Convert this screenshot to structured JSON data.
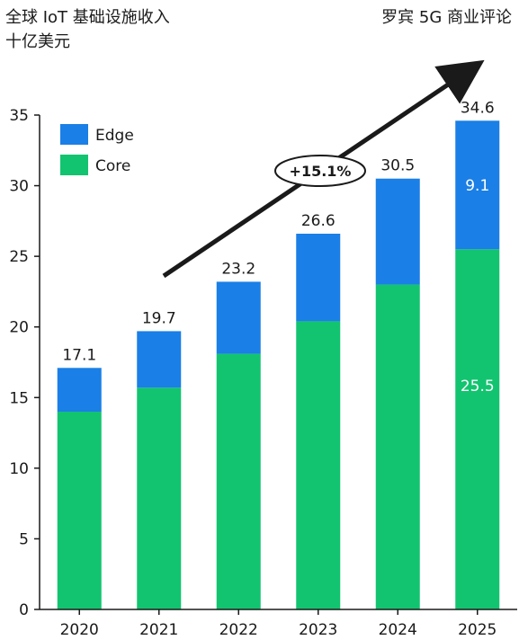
{
  "header": {
    "title_line1": "全球 IoT 基础设施收入",
    "title_line2": "十亿美元",
    "source": "罗宾 5G 商业评论"
  },
  "colors": {
    "edge": "#1a7fe6",
    "core": "#12c46f",
    "text": "#1a1a1a",
    "axis": "#1a1a1a"
  },
  "chart_data": {
    "type": "bar",
    "stacked": true,
    "categories": [
      "2020",
      "2021",
      "2022",
      "2023",
      "2024",
      "2025"
    ],
    "series": [
      {
        "name": "Core",
        "values": [
          14.0,
          15.7,
          18.1,
          20.4,
          23.0,
          25.5
        ]
      },
      {
        "name": "Edge",
        "values": [
          3.1,
          4.0,
          5.1,
          6.2,
          7.5,
          9.1
        ]
      }
    ],
    "totals": [
      "17.1",
      "19.7",
      "23.2",
      "26.6",
      "30.5",
      "34.6"
    ],
    "inner_labels": {
      "edge": "9.1",
      "core": "25.5"
    },
    "ylim": [
      0,
      35
    ],
    "yticks": [
      "0",
      "5",
      "10",
      "15",
      "20",
      "25",
      "30",
      "35"
    ],
    "legend": {
      "placement": "top-left",
      "entries": [
        "Edge",
        "Core"
      ]
    },
    "annotation": "+15.1%",
    "grid": false
  }
}
